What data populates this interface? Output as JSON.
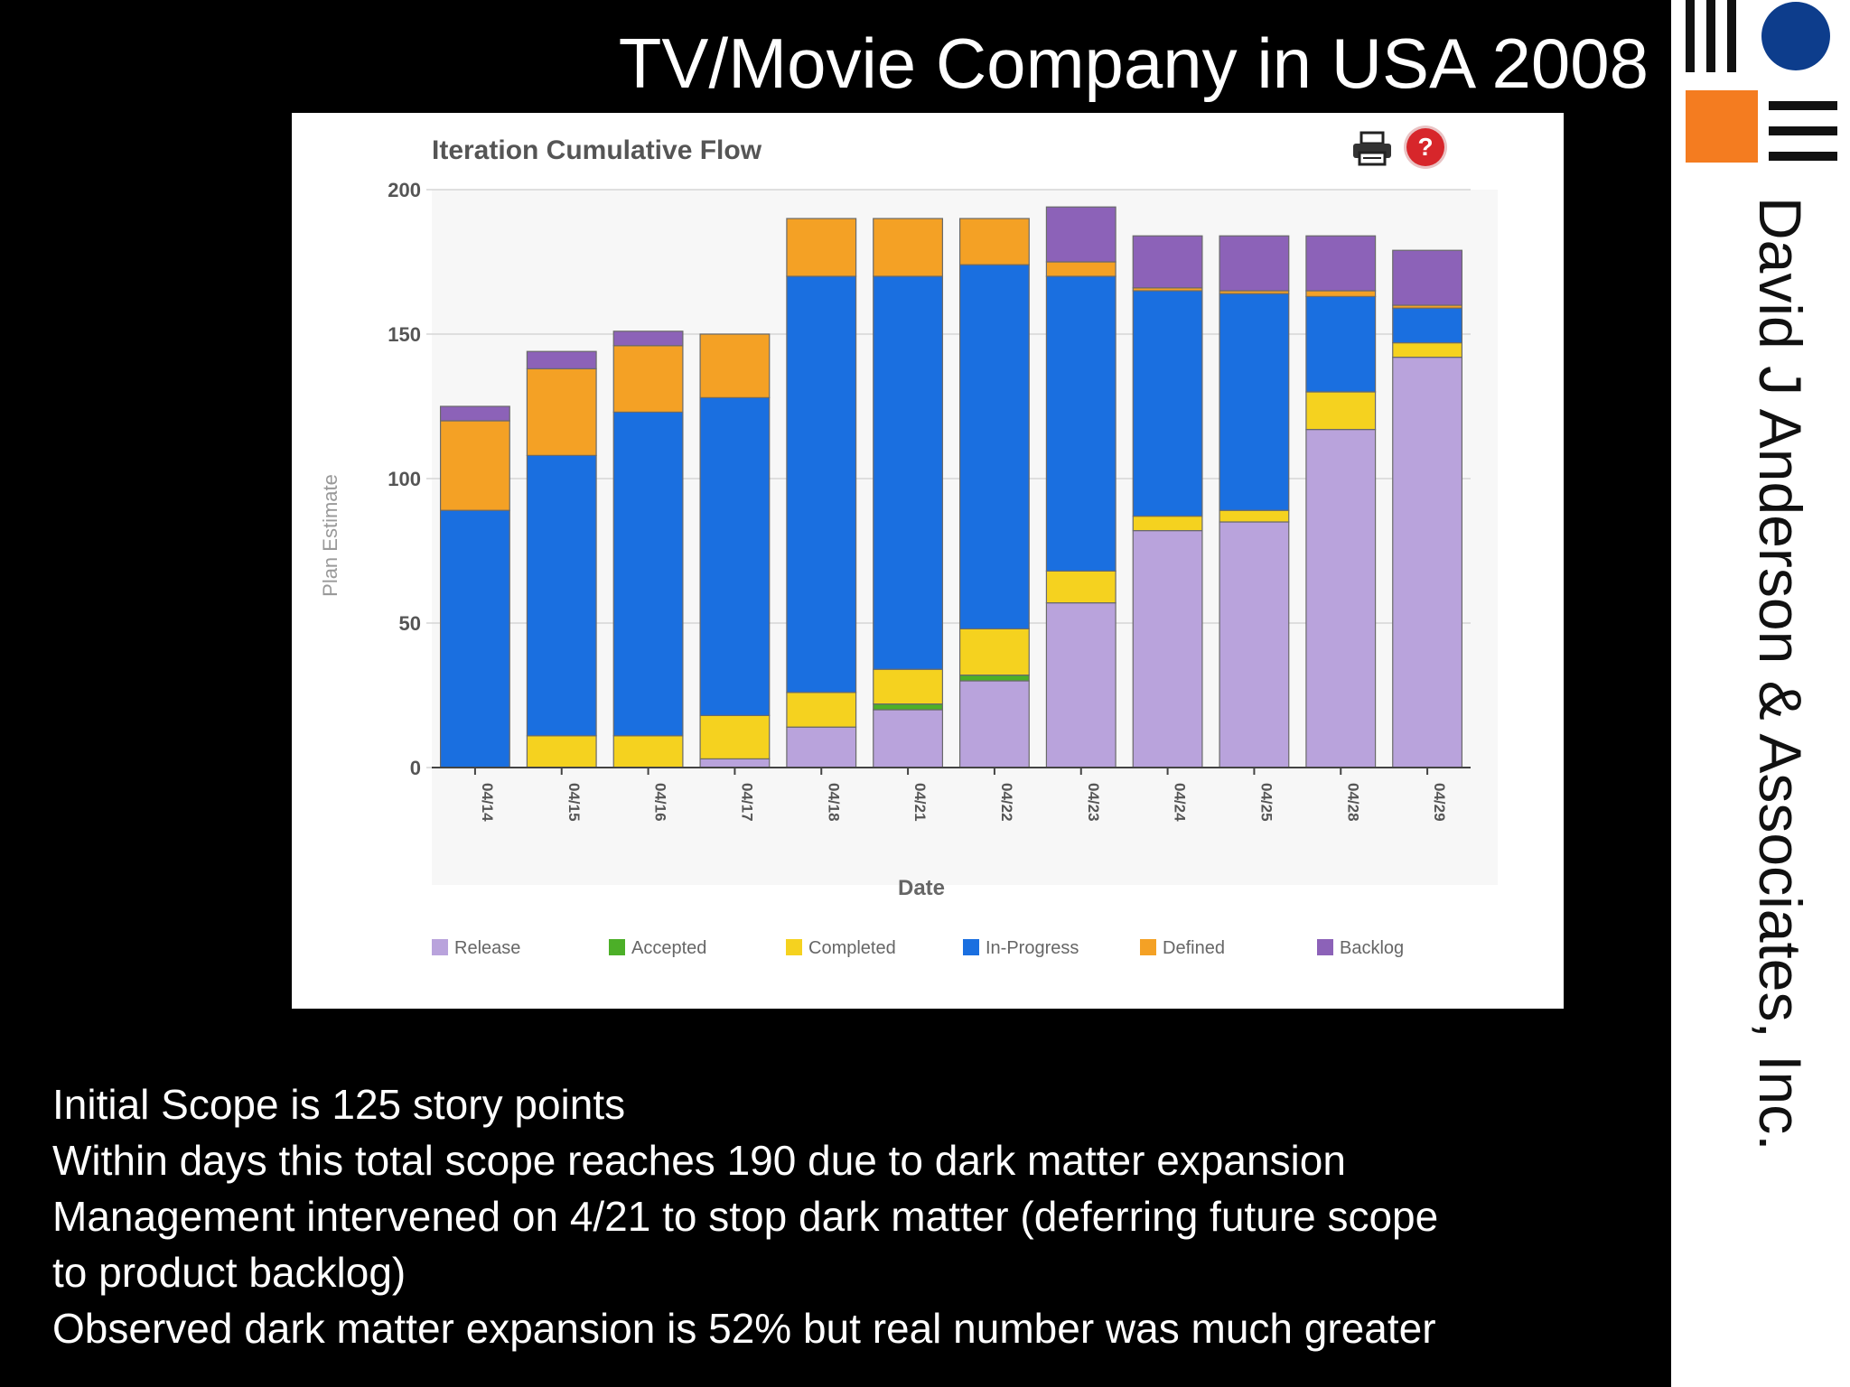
{
  "slide": {
    "title": "TV/Movie Company in USA 2008",
    "company": "David J Anderson & Associates, Inc.",
    "bullets": [
      "Initial Scope is 125 story points",
      "Within days this total scope reaches 190 due to dark matter expansion",
      "Management intervened on 4/21 to stop dark matter (deferring future scope",
      "to product backlog)",
      "Observed dark matter expansion is 52% but real number was much greater"
    ]
  },
  "icons": {
    "print": "printer-icon",
    "help": "help-icon",
    "help_glyph": "?"
  },
  "colors": {
    "background": "#000000",
    "logo_blue": "#0d3d8c",
    "logo_orange": "#f47c20",
    "help_red": "#d7262b"
  },
  "chart_data": {
    "type": "bar",
    "stacked": true,
    "title": "Iteration Cumulative Flow",
    "xlabel": "Date",
    "ylabel": "Plan Estimate",
    "ylim": [
      0,
      200
    ],
    "yticks": [
      0,
      50,
      100,
      150,
      200
    ],
    "grid": true,
    "legend_position": "bottom",
    "categories": [
      "04/14",
      "04/15",
      "04/16",
      "04/17",
      "04/18",
      "04/21",
      "04/22",
      "04/23",
      "04/24",
      "04/25",
      "04/28",
      "04/29"
    ],
    "series": [
      {
        "name": "Release",
        "color": "#b9a3dc",
        "values": [
          0,
          0,
          0,
          3,
          14,
          20,
          30,
          57,
          82,
          85,
          117,
          142
        ]
      },
      {
        "name": "Accepted",
        "color": "#4caf28",
        "values": [
          0,
          0,
          0,
          0,
          0,
          2,
          2,
          0,
          0,
          0,
          0,
          0
        ]
      },
      {
        "name": "Completed",
        "color": "#f5d21f",
        "values": [
          0,
          11,
          11,
          15,
          12,
          12,
          16,
          11,
          5,
          4,
          13,
          5
        ]
      },
      {
        "name": "In-Progress",
        "color": "#1a6fe0",
        "values": [
          89,
          97,
          112,
          110,
          144,
          136,
          126,
          102,
          78,
          75,
          33,
          12
        ]
      },
      {
        "name": "Defined",
        "color": "#f4a125",
        "values": [
          31,
          30,
          23,
          22,
          20,
          20,
          16,
          5,
          1,
          1,
          2,
          1
        ]
      },
      {
        "name": "Backlog",
        "color": "#8c62b8",
        "values": [
          5,
          6,
          5,
          0,
          0,
          0,
          0,
          19,
          18,
          19,
          19,
          19
        ]
      }
    ]
  }
}
